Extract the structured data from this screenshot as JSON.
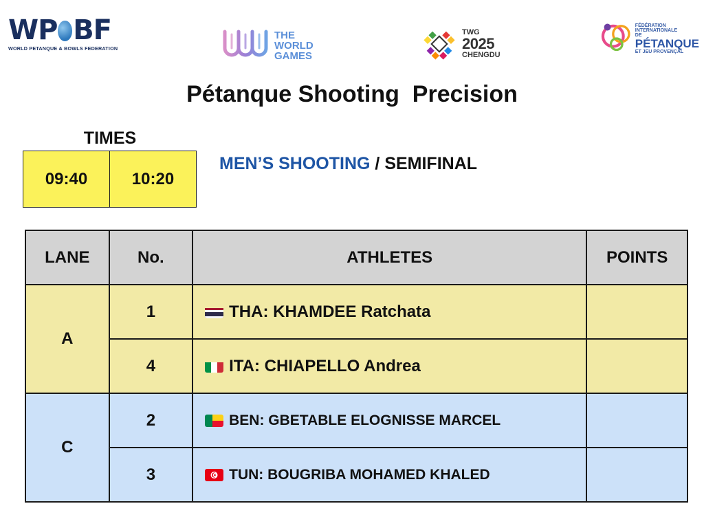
{
  "logos": {
    "wpbf": {
      "left": "WP",
      "right": "BF",
      "subtitle": "WORLD PETANQUE & BOWLS FEDERATION"
    },
    "world_games": {
      "line1": "THE",
      "line2": "WORLD",
      "line3": "GAMES"
    },
    "twg2025": {
      "line1": "TWG",
      "line2": "2025",
      "line3": "CHENGDU"
    },
    "fipjp": {
      "line1": "FÉDÉRATION",
      "line2": "INTERNATIONALE",
      "line3": "DE",
      "line4": "PÉTANQUE",
      "line5": "ET JEU PROVENÇAL"
    }
  },
  "title": "Pétanque Shooting  Precision",
  "times": {
    "label": "TIMES",
    "slots": [
      "09:40",
      "10:20"
    ]
  },
  "event": {
    "category": "MEN’S SHOOTING",
    "separator": " / ",
    "round": "SEMIFINAL"
  },
  "table": {
    "headers": {
      "lane": "LANE",
      "no": "No.",
      "athletes": "ATHLETES",
      "points": "POINTS"
    },
    "groups": [
      {
        "lane": "A",
        "rows": [
          {
            "no": "1",
            "athlete": "THA: KHAMDEE Ratchata",
            "flag": "thailand-flag-icon",
            "points": ""
          },
          {
            "no": "4",
            "athlete": "ITA: CHIAPELLO Andrea",
            "flag": "italy-flag-icon",
            "points": ""
          }
        ]
      },
      {
        "lane": "C",
        "rows": [
          {
            "no": "2",
            "athlete": "BEN: GBETABLE ELOGNISSE MARCEL",
            "flag": "benin-flag-icon",
            "points": ""
          },
          {
            "no": "3",
            "athlete": "TUN: BOUGRIBA MOHAMED KHALED",
            "flag": "tunisia-flag-icon",
            "points": ""
          }
        ]
      }
    ]
  },
  "colors": {
    "times_bg": "#fbf25a",
    "group_a_bg": "#f2eaa6",
    "group_c_bg": "#cce1f9",
    "header_bg": "#d3d3d3",
    "event_blue": "#1e55a5"
  }
}
